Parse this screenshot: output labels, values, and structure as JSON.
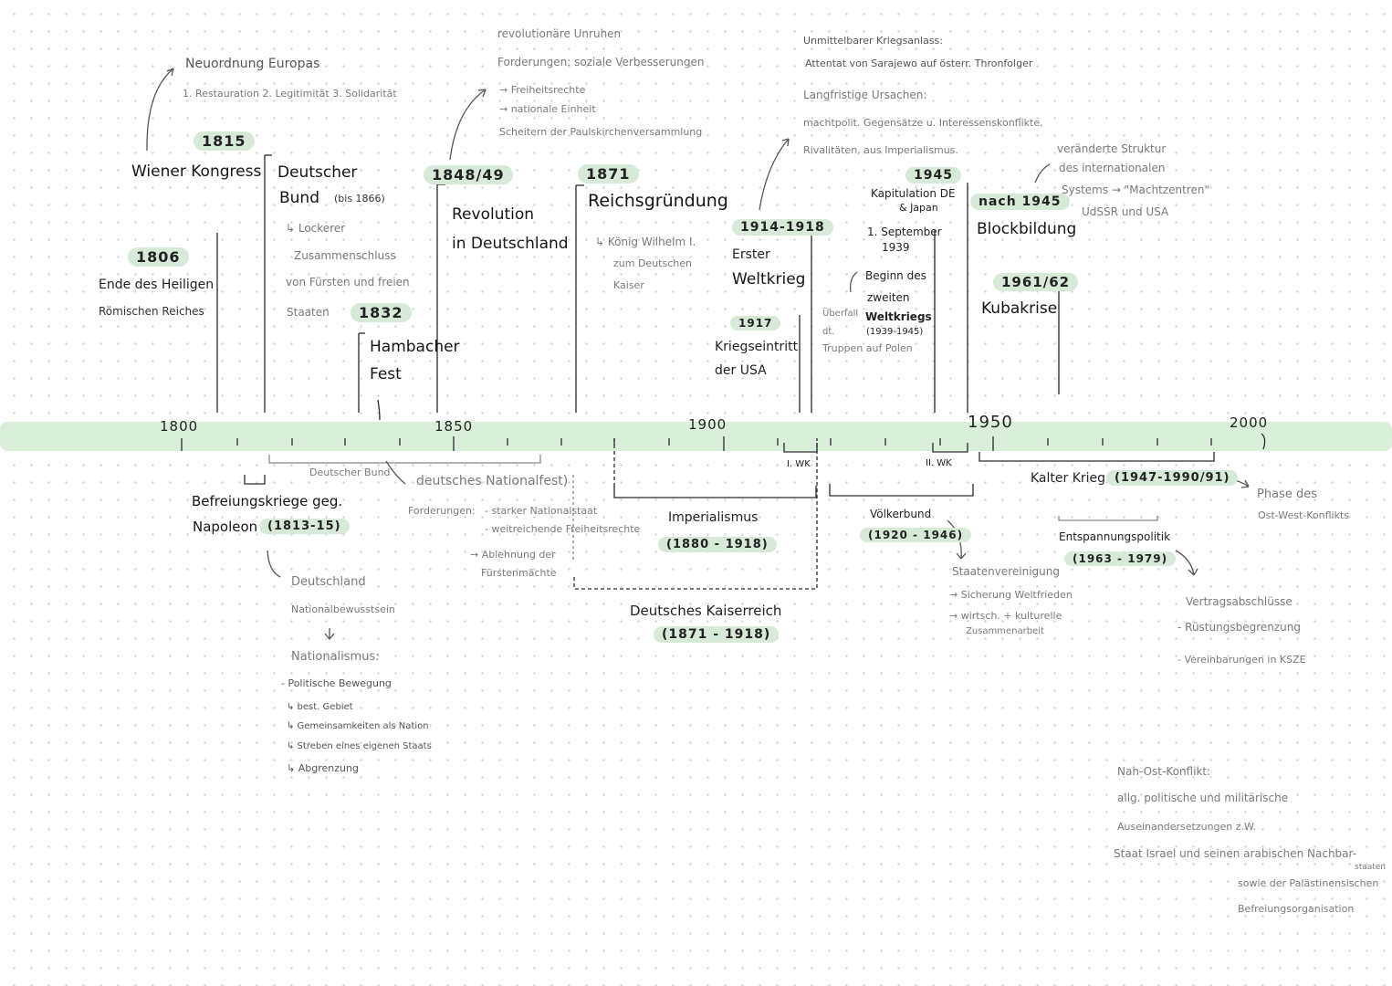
{
  "axis": {
    "ticks": [
      "1800",
      "1850",
      "1900",
      "1950",
      "2000"
    ]
  },
  "events": {
    "hrr": {
      "year": "1806",
      "line1": "Ende des Heiligen",
      "line2": "Römischen Reiches"
    },
    "wiener": {
      "year": "1815",
      "title": "Wiener Kongress",
      "neuordnung": "Neuordnung Europas",
      "principles": "1. Restauration  2. Legitimität  3. Solidarität"
    },
    "bund": {
      "line1": "Deutscher",
      "line2": "Bund",
      "until": "(bis 1866)",
      "desc1": "↳ Lockerer",
      "desc2": "Zusammenschluss",
      "desc3": "von Fürsten und freien",
      "desc4": "Staaten"
    },
    "hambach": {
      "year": "1832",
      "line1": "Hambacher",
      "line2": "Fest"
    },
    "revolution": {
      "year": "1848/49",
      "line1": "Revolution",
      "line2": "in Deutschland",
      "n1": "revolutionäre Unruhen",
      "n2": "Forderungen: soziale Verbesserungen",
      "n3": "→ Freiheitsrechte",
      "n4": "→ nationale Einheit",
      "n5": "Scheitern der Paulskirchenversammlung"
    },
    "reich": {
      "year": "1871",
      "title": "Reichsgründung",
      "d1": "↳ König Wilhelm I.",
      "d2": "zum Deutschen",
      "d3": "Kaiser"
    },
    "wk1": {
      "year": "1914-1918",
      "line1": "Erster",
      "line2": "Weltkrieg",
      "usa_year": "1917",
      "usa1": "Kriegseintritt",
      "usa2": "der USA",
      "c1": "Unmittelbarer Kriegsanlass:",
      "c2": "Attentat von Sarajewo auf österr. Thronfolger",
      "c3": "Langfristige Ursachen:",
      "c4": "machtpolit. Gegensätze u. Interessenskonflikte,",
      "c5": "Rivalitäten, aus Imperialismus."
    },
    "wk2": {
      "start1": "1. September",
      "start2": "1939",
      "b1": "Beginn des",
      "b2": "zweiten",
      "b3": "Weltkriegs",
      "b4": "(1939-1945)",
      "o1": "Überfall",
      "o2": "dt.",
      "o3": "Truppen auf Polen",
      "end_year": "1945",
      "k1": "Kapitulation DE",
      "k2": "& Japan"
    },
    "block": {
      "year": "nach 1945",
      "title": "Blockbildung",
      "s1": "veränderte Struktur",
      "s2": "des internationalen",
      "s3": "Systems  → \"Machtzentren\"",
      "s4": "UdSSR und USA"
    },
    "kuba": {
      "year": "1961/62",
      "title": "Kubakrise"
    }
  },
  "below": {
    "befreiung1": "Befreiungskriege geg.",
    "befreiung2": "Napoleon",
    "befreiung_years": "(1813-15)",
    "bund_label": "Deutscher Bund",
    "nf_title": "deutsches Nationalfest)",
    "nf_ford": "Forderungen:",
    "nf1": "- starker Nationalstaat",
    "nf2": "- weitreichende Freiheitsrechte",
    "nf3": "→ Ablehnung der",
    "nf4": "Fürstenmächte",
    "nat1": "Deutschland",
    "nat2": "Nationalbewusstsein",
    "nat3": "Nationalismus:",
    "nat4": "- Politische Bewegung",
    "nat5": "↳ best. Gebiet",
    "nat6": "↳ Gemeinsamkeiten als Nation",
    "nat7": "↳ Streben eines eigenen Staats",
    "nat8": "↳ Abgrenzung",
    "imp1": "Imperialismus",
    "imp2": "(1880 - 1918)",
    "kr1": "Deutsches Kaiserreich",
    "kr2": "(1871 - 1918)",
    "wk1": "I. WK",
    "wk2": "II. WK",
    "vb1": "Völkerbund",
    "vb2": "(1920 - 1946)",
    "vb3": "Staatenvereinigung",
    "vb4": "→ Sicherung Weltfrieden",
    "vb5": "→ wirtsch. + kulturelle",
    "vb6": "Zusammenarbeit",
    "kk": "Kalter Krieg",
    "kk_years": "(1947-1990/91)",
    "ph1": "Phase des",
    "ph2": "Ost-West-Konflikts",
    "ent1": "Entspannungspolitik",
    "ent2": "(1963 - 1979)",
    "ent3": "Vertragsabschlüsse",
    "ent4": "- Rüstungsbegrenzung",
    "ent5": "- Vereinbarungen in KSZE",
    "no1": "Nah-Ost-Konflikt:",
    "no2": "allg. politische und militärische",
    "no3": "Auseinandersetzungen z.W.",
    "no4": "Staat Israel  und seinen arabischen Nachbar-",
    "no5": "staaten",
    "no6": "sowie der Palästinensischen",
    "no7": "Befreiungsorganisation"
  }
}
